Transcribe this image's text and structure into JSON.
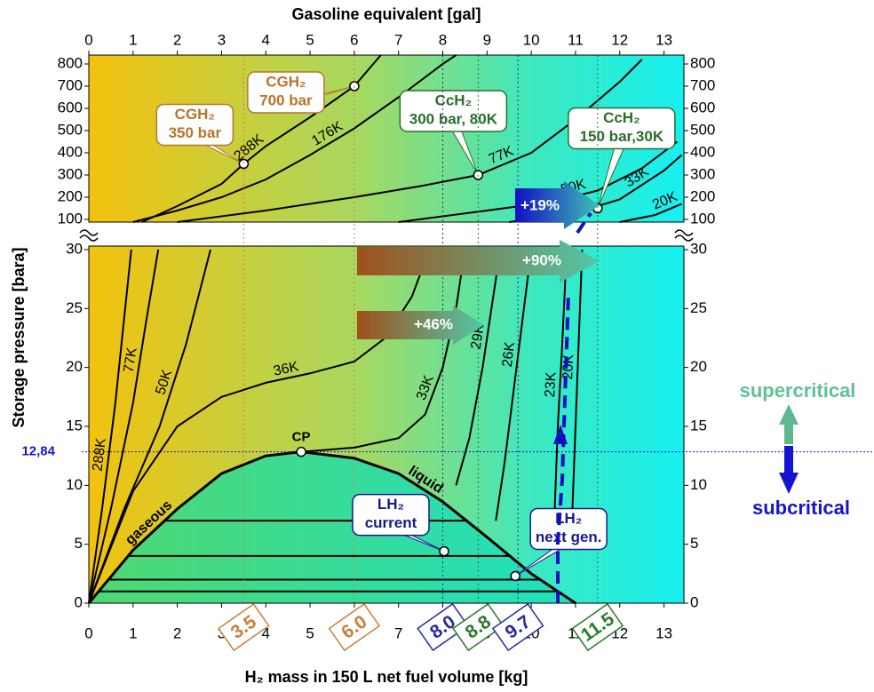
{
  "chart_data": [
    {
      "type": "line",
      "x_label": "Gasoline equivalent [gal]",
      "xlim": [
        0,
        13.45
      ],
      "xticks": [
        0,
        1,
        2,
        3,
        4,
        5,
        6,
        7,
        8,
        9,
        10,
        11,
        12,
        13
      ],
      "ylim": [
        88,
        840
      ],
      "yticks": [
        100,
        200,
        300,
        400,
        500,
        600,
        700,
        800
      ],
      "series": [
        {
          "name": "288K",
          "color": "#000000",
          "x": [
            1.2,
            2,
            3,
            3.5,
            4,
            5,
            6,
            6.6
          ],
          "values": [
            88,
            160,
            260,
            350,
            430,
            560,
            700,
            840
          ]
        },
        {
          "name": "176K",
          "color": "#000000",
          "x": [
            1,
            2,
            3,
            4,
            5,
            6,
            7,
            8,
            8.3
          ],
          "values": [
            88,
            140,
            200,
            280,
            390,
            510,
            650,
            800,
            840
          ]
        },
        {
          "name": "77K",
          "color": "#000000",
          "x": [
            2,
            4,
            6,
            7.5,
            8.8,
            10,
            11,
            12,
            12.5
          ],
          "values": [
            88,
            140,
            200,
            250,
            300,
            400,
            550,
            720,
            820
          ]
        },
        {
          "name": "50K",
          "color": "#000000",
          "x": [
            7,
            9,
            10.5,
            11.5,
            12.5,
            13.3
          ],
          "values": [
            88,
            140,
            180,
            230,
            330,
            450
          ]
        },
        {
          "name": "33K",
          "color": "#000000",
          "x": [
            9.5,
            11,
            12,
            13,
            13.4
          ],
          "values": [
            88,
            130,
            190,
            320,
            390
          ]
        },
        {
          "name": "20K",
          "color": "#000000",
          "x": [
            12,
            12.8,
            13.4
          ],
          "values": [
            88,
            120,
            170
          ]
        }
      ],
      "points": [
        {
          "label": [
            "CGH₂",
            "350 bar"
          ],
          "x": 3.5,
          "y": 350,
          "color": "#b8742a"
        },
        {
          "label": [
            "CGH₂",
            "700 bar"
          ],
          "x": 6.0,
          "y": 700,
          "color": "#b8742a"
        },
        {
          "label": [
            "CcH₂",
            "300 bar, 80K"
          ],
          "x": 8.8,
          "y": 300,
          "color": "#2a6e2a"
        },
        {
          "label": [
            "CcH₂",
            "150 bar,30K"
          ],
          "x": 11.5,
          "y": 150,
          "color": "#2a6e2a"
        }
      ],
      "annotations": [
        "+19%"
      ]
    },
    {
      "type": "line",
      "x_label": "H₂ mass in 150 L net fuel volume [kg]",
      "y_label": "Storage pressure [bara]",
      "xlim": [
        0,
        13.45
      ],
      "xticks": [
        0,
        1,
        2,
        3,
        4,
        5,
        6,
        7,
        8,
        9,
        10,
        11,
        12,
        13
      ],
      "ylim": [
        0,
        30.3
      ],
      "yticks": [
        0,
        5,
        10,
        15,
        20,
        25,
        30
      ],
      "series": [
        {
          "name": "288K",
          "color": "#000000",
          "x": [
            0,
            0.3,
            0.6,
            0.96
          ],
          "values": [
            0,
            8,
            17,
            30
          ]
        },
        {
          "name": "77K",
          "color": "#000000",
          "x": [
            0,
            0.5,
            1,
            1.3,
            1.57
          ],
          "values": [
            0,
            8,
            17,
            24,
            30
          ]
        },
        {
          "name": "50K",
          "color": "#000000",
          "x": [
            0,
            0.8,
            1.6,
            2.2,
            2.75
          ],
          "values": [
            0,
            8,
            15,
            22,
            30
          ]
        },
        {
          "name": "36K",
          "color": "#000000",
          "x": [
            0,
            1,
            2,
            3,
            4,
            5,
            6,
            6.7,
            7.3,
            7.7
          ],
          "values": [
            0,
            9.5,
            15,
            17.5,
            18.7,
            19.5,
            20.5,
            22.5,
            26,
            30
          ]
        },
        {
          "name": "33K",
          "color": "#000000",
          "x": [
            4.8,
            6,
            7,
            7.6,
            8,
            8.3,
            8.5
          ],
          "values": [
            12.84,
            13.2,
            14,
            16,
            20,
            25,
            30
          ]
        },
        {
          "name": "29K",
          "color": "#000000",
          "x": [
            8.3,
            8.6,
            8.9,
            9.1,
            9.3
          ],
          "values": [
            10,
            14,
            20,
            25,
            30
          ]
        },
        {
          "name": "26K",
          "color": "#000000",
          "x": [
            9.2,
            9.4,
            9.6,
            9.8,
            10
          ],
          "values": [
            7,
            12,
            18,
            24,
            30
          ]
        },
        {
          "name": "23K",
          "color": "#000000",
          "x": [
            10.5,
            10.6,
            10.7,
            10.8
          ],
          "values": [
            5,
            15,
            22,
            30
          ]
        },
        {
          "name": "20K",
          "color": "#000000",
          "x": [
            10.9,
            11,
            11.1,
            11.15
          ],
          "values": [
            5,
            15,
            25,
            30
          ]
        },
        {
          "name": "gaseous",
          "color": "#000000",
          "x": [
            0,
            1,
            2,
            3,
            4,
            4.8
          ],
          "values": [
            0,
            4.5,
            8,
            11,
            12.5,
            12.84
          ]
        },
        {
          "name": "liquid",
          "color": "#000000",
          "x": [
            4.8,
            6,
            7,
            8,
            9,
            10,
            11
          ],
          "values": [
            12.84,
            12.3,
            11,
            8.6,
            5.6,
            2.5,
            0
          ]
        }
      ],
      "isobars": [
        1,
        2,
        4,
        7
      ],
      "critical_point": {
        "label": "CP",
        "x": 4.8,
        "y": 12.84
      },
      "hline": {
        "value": 12.84,
        "label": "12,84"
      },
      "points": [
        {
          "label": [
            "LH₂",
            "current"
          ],
          "x": 8.03,
          "y": 4.4,
          "color": "#1a1a8c"
        },
        {
          "label": [
            "LH₂",
            "next gen."
          ],
          "x": 9.64,
          "y": 2.3,
          "color": "#1a1a8c"
        }
      ],
      "markers": [
        3.5,
        {
          "value": 6,
          "label": "6.0"
        },
        {
          "value": 8,
          "label": "8.0"
        },
        8.8,
        9.7,
        11.5
      ],
      "marker_colors": [
        "#c8803c",
        "#c8803c",
        "#2a2aa0",
        "#2a7a2a",
        "#2a2aa0",
        "#2a7a2a"
      ],
      "annotations": [
        "+90%",
        "+46%",
        "supercritical",
        "subcritical"
      ]
    }
  ]
}
